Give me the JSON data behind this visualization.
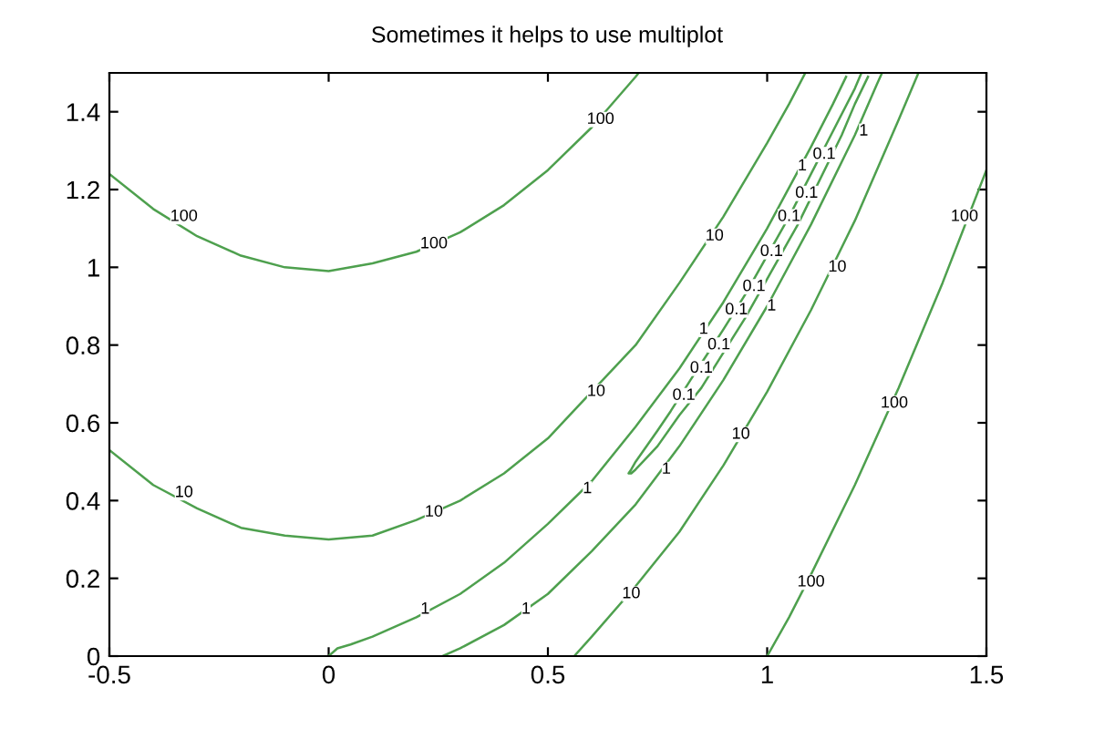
{
  "chart_data": {
    "type": "line",
    "title": "Sometimes it helps to use multiplot",
    "xlim": [
      -0.5,
      1.5
    ],
    "ylim": [
      0,
      1.5
    ],
    "xticks": [
      -0.5,
      0,
      0.5,
      1,
      1.5
    ],
    "yticks": [
      0,
      0.2,
      0.4,
      0.6,
      0.8,
      1,
      1.2,
      1.4
    ],
    "grid": false,
    "legend": false,
    "marker": "none",
    "line_style": "solid",
    "series": [
      {
        "color": "#4ea04e",
        "x": [
          -0.5,
          -0.4,
          -0.3,
          -0.2,
          -0.1,
          0,
          0.1,
          0.2,
          0.3,
          0.4,
          0.5,
          0.6,
          0.7,
          0.707
        ],
        "values": [
          1.24,
          1.15,
          1.08,
          1.03,
          1.0,
          0.99,
          1.01,
          1.04,
          1.09,
          1.16,
          1.25,
          1.36,
          1.49,
          1.5
        ]
      },
      {
        "color": "#4ea04e",
        "x": [
          1,
          1.05,
          1.1,
          1.2,
          1.3,
          1.4,
          1.5
        ],
        "values": [
          0,
          0.1,
          0.21,
          0.44,
          0.69,
          0.96,
          1.25
        ]
      },
      {
        "color": "#4ea04e",
        "x": [
          -0.5,
          -0.4,
          -0.3,
          -0.2,
          -0.1,
          0,
          0.1,
          0.2,
          0.3,
          0.4,
          0.5,
          0.55,
          0.7,
          0.8,
          0.9,
          1,
          1.05,
          1.087
        ],
        "values": [
          0.53,
          0.44,
          0.38,
          0.33,
          0.31,
          0.3,
          0.31,
          0.35,
          0.4,
          0.47,
          0.56,
          0.62,
          0.8,
          0.96,
          1.13,
          1.32,
          1.42,
          1.5
        ]
      },
      {
        "color": "#4ea04e",
        "x": [
          0.56,
          0.6,
          0.7,
          0.8,
          0.9,
          1,
          1.1,
          1.2,
          1.3,
          1.345
        ],
        "values": [
          0,
          0.05,
          0.18,
          0.32,
          0.49,
          0.68,
          0.89,
          1.12,
          1.38,
          1.5
        ]
      },
      {
        "color": "#4ea04e",
        "x": [
          0,
          0.02,
          0.05,
          0.1,
          0.2,
          0.3,
          0.4,
          0.5,
          0.6,
          0.7,
          0.8,
          0.9,
          1,
          1.1,
          1.15,
          1.18
        ],
        "values": [
          0,
          0.02,
          0.03,
          0.05,
          0.1,
          0.16,
          0.24,
          0.34,
          0.45,
          0.59,
          0.74,
          0.91,
          1.1,
          1.31,
          1.42,
          1.49
        ]
      },
      {
        "color": "#4ea04e",
        "x": [
          0.26,
          0.3,
          0.4,
          0.5,
          0.6,
          0.7,
          0.8,
          0.9,
          1,
          1.1,
          1.2,
          1.25,
          1.262
        ],
        "values": [
          0,
          0.02,
          0.08,
          0.16,
          0.27,
          0.39,
          0.54,
          0.71,
          0.9,
          1.11,
          1.34,
          1.47,
          1.5
        ]
      },
      {
        "color": "#4ea04e",
        "x": [
          1.215,
          1.2,
          1.15,
          1.1,
          1.05,
          0.975,
          0.95,
          0.9,
          0.825,
          0.78,
          0.75,
          0.7,
          0.69,
          0.684,
          0.69,
          0.7,
          0.75,
          0.8,
          0.85,
          0.9,
          0.95,
          1,
          1.05,
          1.07,
          1.17,
          1.2,
          1.23
        ],
        "values": [
          1.5,
          1.46,
          1.35,
          1.24,
          1.13,
          0.98,
          0.93,
          0.84,
          0.71,
          0.63,
          0.58,
          0.5,
          0.48,
          0.47,
          0.47,
          0.48,
          0.54,
          0.62,
          0.69,
          0.78,
          0.87,
          0.97,
          1.07,
          1.11,
          1.34,
          1.42,
          1.49
        ]
      }
    ],
    "annotations": [
      {
        "text": "100",
        "x": -0.33,
        "y": 1.13
      },
      {
        "text": "100",
        "x": 0.24,
        "y": 1.06
      },
      {
        "text": "100",
        "x": 0.62,
        "y": 1.38
      },
      {
        "text": "100",
        "x": 1.45,
        "y": 1.13
      },
      {
        "text": "100",
        "x": 1.29,
        "y": 0.65
      },
      {
        "text": "100",
        "x": 1.1,
        "y": 0.19
      },
      {
        "text": "10",
        "x": -0.33,
        "y": 0.42
      },
      {
        "text": "10",
        "x": 0.24,
        "y": 0.37
      },
      {
        "text": "10",
        "x": 0.61,
        "y": 0.68
      },
      {
        "text": "10",
        "x": 0.88,
        "y": 1.08
      },
      {
        "text": "10",
        "x": 1.16,
        "y": 1.0
      },
      {
        "text": "10",
        "x": 0.94,
        "y": 0.57
      },
      {
        "text": "10",
        "x": 0.69,
        "y": 0.16
      },
      {
        "text": "1",
        "x": 0.22,
        "y": 0.12
      },
      {
        "text": "1",
        "x": 0.45,
        "y": 0.12
      },
      {
        "text": "1",
        "x": 0.59,
        "y": 0.43
      },
      {
        "text": "1",
        "x": 0.77,
        "y": 0.48
      },
      {
        "text": "1",
        "x": 0.855,
        "y": 0.84
      },
      {
        "text": "1",
        "x": 1.01,
        "y": 0.9
      },
      {
        "text": "1",
        "x": 1.08,
        "y": 1.26
      },
      {
        "text": "1",
        "x": 1.22,
        "y": 1.35
      },
      {
        "text": "0.1",
        "x": 0.81,
        "y": 0.67
      },
      {
        "text": "0.1",
        "x": 0.85,
        "y": 0.74
      },
      {
        "text": "0.1",
        "x": 0.89,
        "y": 0.8
      },
      {
        "text": "0.1",
        "x": 0.93,
        "y": 0.89
      },
      {
        "text": "0.1",
        "x": 0.97,
        "y": 0.95
      },
      {
        "text": "0.1",
        "x": 1.01,
        "y": 1.04
      },
      {
        "text": "0.1",
        "x": 1.05,
        "y": 1.13
      },
      {
        "text": "0.1",
        "x": 1.09,
        "y": 1.19
      },
      {
        "text": "0.1",
        "x": 1.13,
        "y": 1.29
      }
    ]
  }
}
